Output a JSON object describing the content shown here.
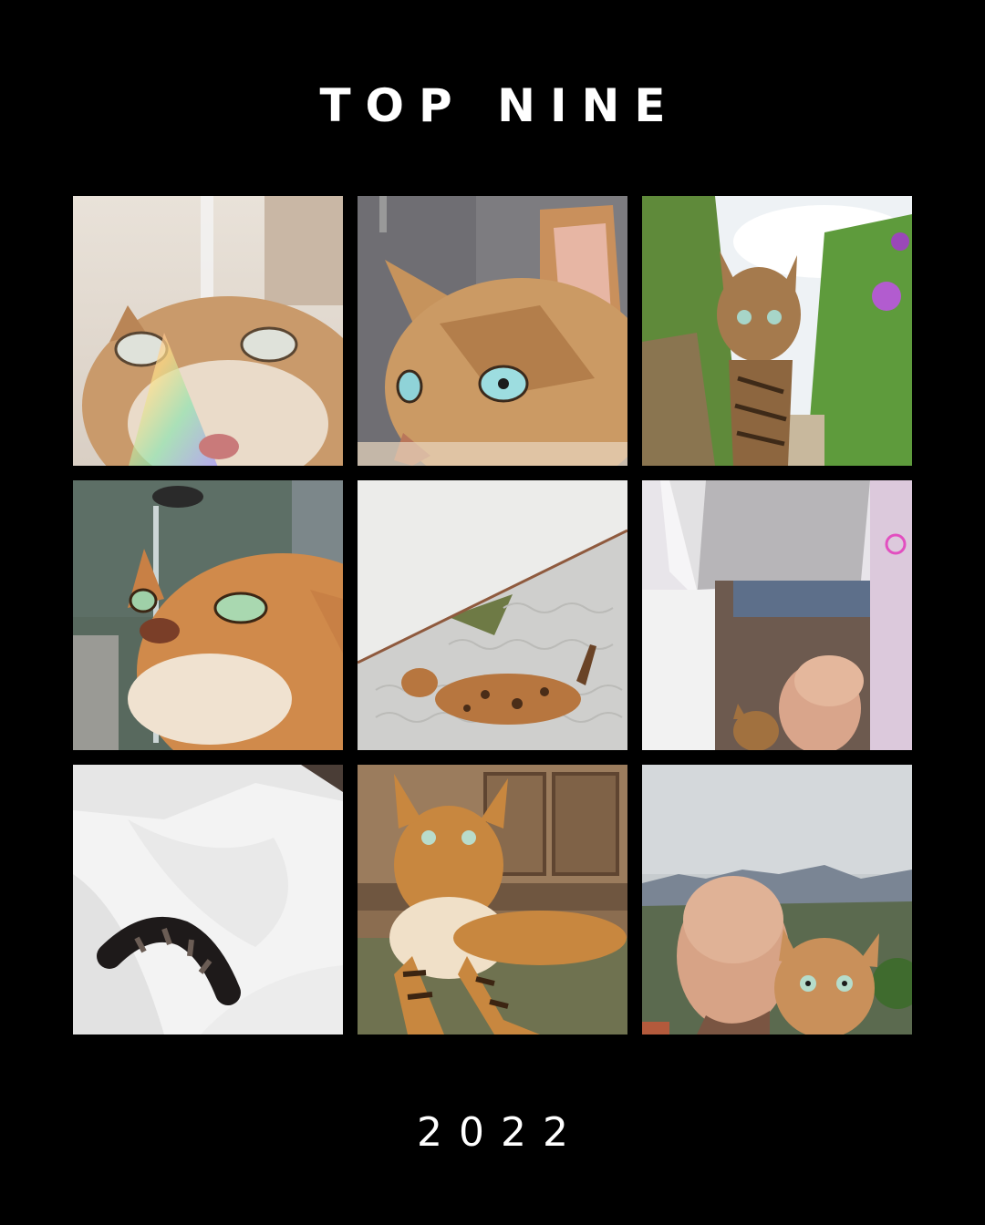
{
  "header": {
    "title": "TOP NINE"
  },
  "footer": {
    "year": "2022"
  },
  "grid": {
    "tiles": [
      {
        "subject": "cat-drinking-from-tap-rainbow-photo"
      },
      {
        "subject": "bengal-cat-closeup-photo"
      },
      {
        "subject": "cat-walking-garden-path-photo"
      },
      {
        "subject": "cat-drinking-water-stream-photo"
      },
      {
        "subject": "cat-lying-on-pavement-photo"
      },
      {
        "subject": "man-kissing-cat-at-window-photo"
      },
      {
        "subject": "cat-tail-in-white-duvet-photo"
      },
      {
        "subject": "cat-lying-on-rug-photo"
      },
      {
        "subject": "man-and-cat-selfie-mountains-photo"
      }
    ]
  },
  "colors": {
    "background": "#000000",
    "text": "#ffffff"
  }
}
